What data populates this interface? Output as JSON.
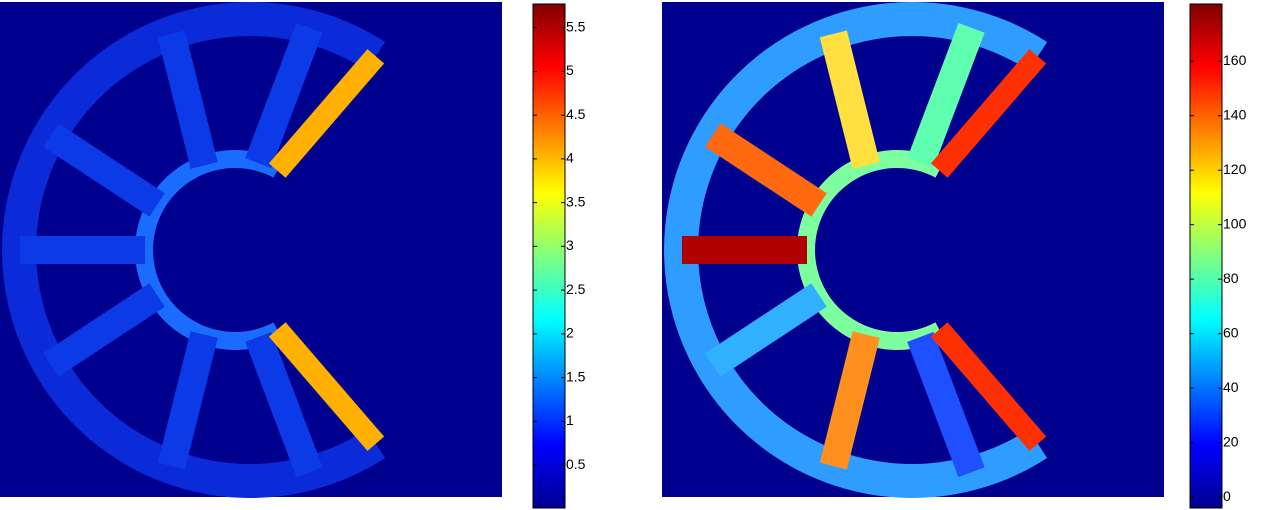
{
  "chart_data": [
    {
      "type": "heatmap",
      "colormap": "jet",
      "clim": [
        0.01,
        5.77
      ],
      "cticks": [
        0.5,
        1,
        1.5,
        2,
        2.5,
        3,
        3.5,
        4,
        4.5,
        5,
        5.5
      ]
    },
    {
      "type": "heatmap",
      "colormap": "jet",
      "clim": [
        -4,
        181
      ],
      "cticks": [
        0,
        20,
        40,
        60,
        80,
        100,
        120,
        140,
        160
      ]
    }
  ]
}
